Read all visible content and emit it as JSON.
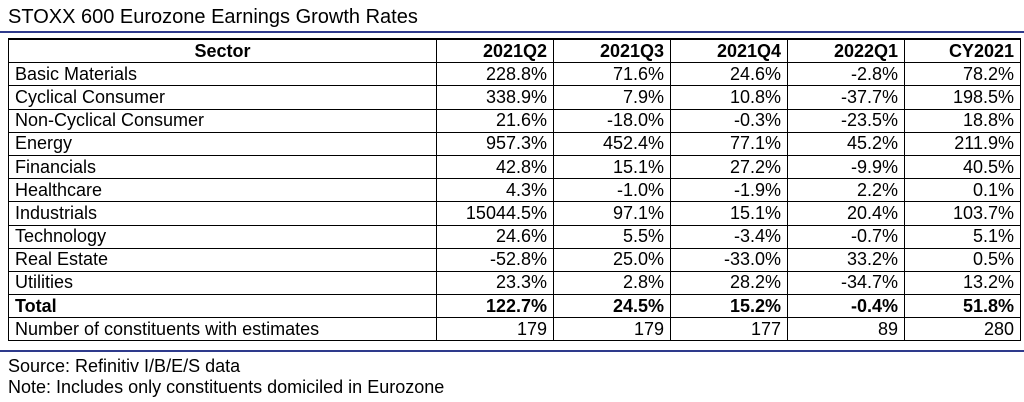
{
  "title": "STOXX 600 Eurozone Earnings Growth Rates",
  "table": {
    "headers": [
      "Sector",
      "2021Q2",
      "2021Q3",
      "2021Q4",
      "2022Q1",
      "CY2021"
    ],
    "rows": [
      [
        "Basic Materials",
        "228.8%",
        "71.6%",
        "24.6%",
        "-2.8%",
        "78.2%"
      ],
      [
        "Cyclical Consumer",
        "338.9%",
        "7.9%",
        "10.8%",
        "-37.7%",
        "198.5%"
      ],
      [
        "Non-Cyclical Consumer",
        "21.6%",
        "-18.0%",
        "-0.3%",
        "-23.5%",
        "18.8%"
      ],
      [
        "Energy",
        "957.3%",
        "452.4%",
        "77.1%",
        "45.2%",
        "211.9%"
      ],
      [
        "Financials",
        "42.8%",
        "15.1%",
        "27.2%",
        "-9.9%",
        "40.5%"
      ],
      [
        "Healthcare",
        "4.3%",
        "-1.0%",
        "-1.9%",
        "2.2%",
        "0.1%"
      ],
      [
        "Industrials",
        "15044.5%",
        "97.1%",
        "15.1%",
        "20.4%",
        "103.7%"
      ],
      [
        "Technology",
        "24.6%",
        "5.5%",
        "-3.4%",
        "-0.7%",
        "5.1%"
      ],
      [
        "Real Estate",
        "-52.8%",
        "25.0%",
        "-33.0%",
        "33.2%",
        "0.5%"
      ],
      [
        "Utilities",
        "23.3%",
        "2.8%",
        "28.2%",
        "-34.7%",
        "13.2%"
      ],
      [
        "Total",
        "122.7%",
        "24.5%",
        "15.2%",
        "-0.4%",
        "51.8%"
      ],
      [
        "Number of constituents with estimates",
        "179",
        "179",
        "177",
        "89",
        "280"
      ]
    ]
  },
  "notes": {
    "source": "Source: Refinitiv I/B/E/S data",
    "note": "Note: Includes only constituents domiciled in Eurozone"
  },
  "colors": {
    "rule": "#2e3a8c"
  }
}
